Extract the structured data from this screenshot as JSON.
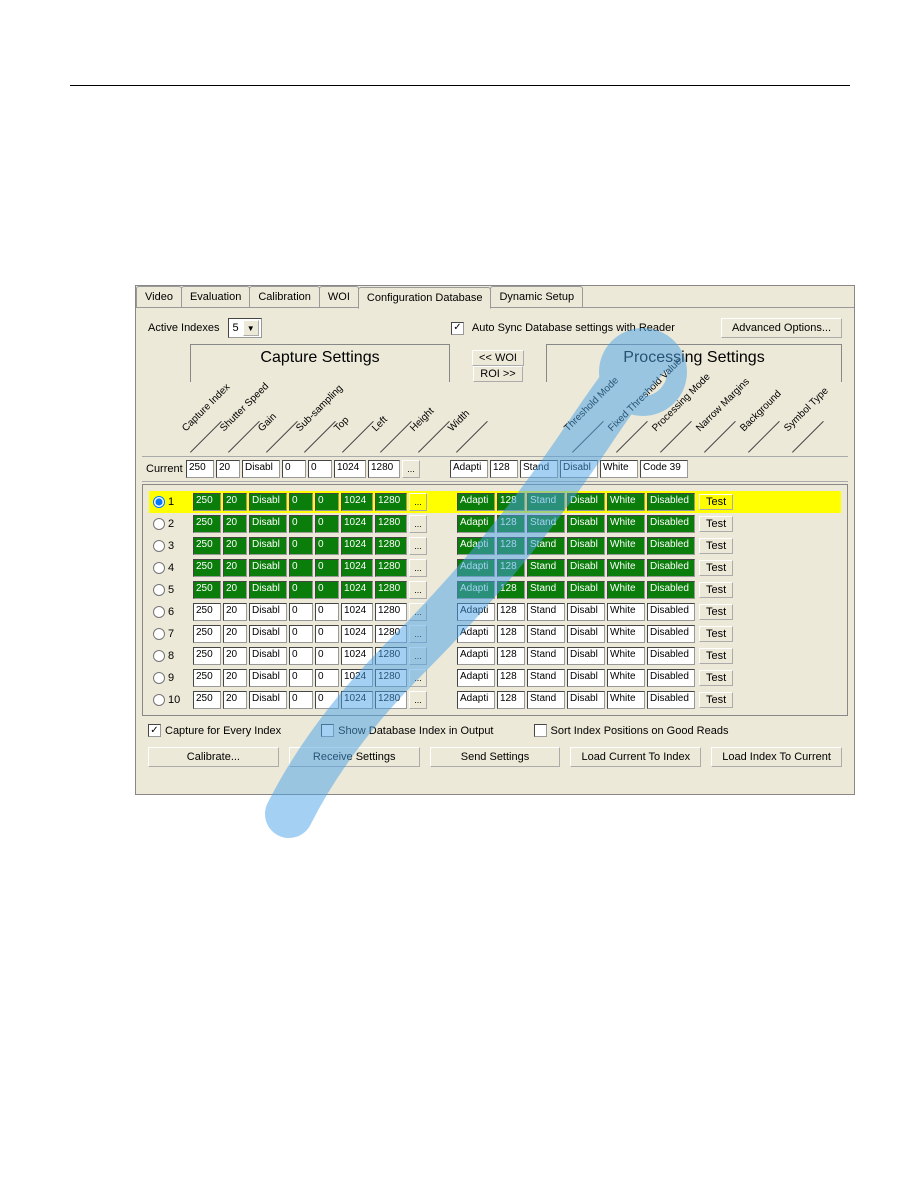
{
  "tabs": [
    "Video",
    "Evaluation",
    "Calibration",
    "WOI",
    "Configuration Database",
    "Dynamic Setup"
  ],
  "active_tab_index": 4,
  "active_indexes": {
    "label": "Active Indexes",
    "value": "5"
  },
  "auto_sync": {
    "label": "Auto Sync Database settings with Reader",
    "checked": true
  },
  "advanced_btn": "Advanced Options...",
  "section_capture": "Capture Settings",
  "section_processing": "Processing Settings",
  "woi_btn": "<< WOI",
  "roi_btn": "ROI >>",
  "capture_headers": [
    "Capture Index",
    "Shutter Speed",
    "Gain",
    "Sub-sampling",
    "Top",
    "Left",
    "Height",
    "Width"
  ],
  "processing_headers": [
    "Threshold Mode",
    "Fixed Threshold Value",
    "Processing Mode",
    "Narrow Margins",
    "Background",
    "Symbol Type"
  ],
  "current_label": "Current",
  "current_row": {
    "capture": [
      "250",
      "20",
      "Disabl",
      "0",
      "0",
      "1024",
      "1280"
    ],
    "processing": [
      "Adapti",
      "128",
      "Stand",
      "Disabl",
      "White",
      "Code 39"
    ]
  },
  "rows": [
    {
      "n": 1,
      "sel": true,
      "active": true,
      "cap": [
        "250",
        "20",
        "Disabl",
        "0",
        "0",
        "1024",
        "1280"
      ],
      "proc": [
        "Adapti",
        "128",
        "Stand",
        "Disabl",
        "White",
        "Disabled"
      ]
    },
    {
      "n": 2,
      "sel": false,
      "active": true,
      "cap": [
        "250",
        "20",
        "Disabl",
        "0",
        "0",
        "1024",
        "1280"
      ],
      "proc": [
        "Adapti",
        "128",
        "Stand",
        "Disabl",
        "White",
        "Disabled"
      ]
    },
    {
      "n": 3,
      "sel": false,
      "active": true,
      "cap": [
        "250",
        "20",
        "Disabl",
        "0",
        "0",
        "1024",
        "1280"
      ],
      "proc": [
        "Adapti",
        "128",
        "Stand",
        "Disabl",
        "White",
        "Disabled"
      ]
    },
    {
      "n": 4,
      "sel": false,
      "active": true,
      "cap": [
        "250",
        "20",
        "Disabl",
        "0",
        "0",
        "1024",
        "1280"
      ],
      "proc": [
        "Adapti",
        "128",
        "Stand",
        "Disabl",
        "White",
        "Disabled"
      ]
    },
    {
      "n": 5,
      "sel": false,
      "active": true,
      "cap": [
        "250",
        "20",
        "Disabl",
        "0",
        "0",
        "1024",
        "1280"
      ],
      "proc": [
        "Adapti",
        "128",
        "Stand",
        "Disabl",
        "White",
        "Disabled"
      ]
    },
    {
      "n": 6,
      "sel": false,
      "active": false,
      "cap": [
        "250",
        "20",
        "Disabl",
        "0",
        "0",
        "1024",
        "1280"
      ],
      "proc": [
        "Adapti",
        "128",
        "Stand",
        "Disabl",
        "White",
        "Disabled"
      ]
    },
    {
      "n": 7,
      "sel": false,
      "active": false,
      "cap": [
        "250",
        "20",
        "Disabl",
        "0",
        "0",
        "1024",
        "1280"
      ],
      "proc": [
        "Adapti",
        "128",
        "Stand",
        "Disabl",
        "White",
        "Disabled"
      ]
    },
    {
      "n": 8,
      "sel": false,
      "active": false,
      "cap": [
        "250",
        "20",
        "Disabl",
        "0",
        "0",
        "1024",
        "1280"
      ],
      "proc": [
        "Adapti",
        "128",
        "Stand",
        "Disabl",
        "White",
        "Disabled"
      ]
    },
    {
      "n": 9,
      "sel": false,
      "active": false,
      "cap": [
        "250",
        "20",
        "Disabl",
        "0",
        "0",
        "1024",
        "1280"
      ],
      "proc": [
        "Adapti",
        "128",
        "Stand",
        "Disabl",
        "White",
        "Disabled"
      ]
    },
    {
      "n": 10,
      "sel": false,
      "active": false,
      "cap": [
        "250",
        "20",
        "Disabl",
        "0",
        "0",
        "1024",
        "1280"
      ],
      "proc": [
        "Adapti",
        "128",
        "Stand",
        "Disabl",
        "White",
        "Disabled"
      ]
    }
  ],
  "test_btn": "Test",
  "cap_widths": [
    "w28",
    "w24",
    "w38",
    "w24",
    "w24",
    "w32",
    "w32"
  ],
  "proc_widths": [
    "w38",
    "w28",
    "w38",
    "w38",
    "w38",
    "w48"
  ],
  "bottom_checks": {
    "capture_every": {
      "label": "Capture for Every Index",
      "checked": true
    },
    "show_db_index": {
      "label": "Show Database Index in Output",
      "checked": false
    },
    "sort_positions": {
      "label": "Sort Index Positions on Good Reads",
      "checked": false
    }
  },
  "bottom_btns": [
    "Calibrate...",
    "Receive Settings",
    "Send Settings",
    "Load Current To Index",
    "Load Index To Current"
  ],
  "colors": {
    "active_cell_bg": "#0b7d0b",
    "active_cell_fg": "#ffffff",
    "selected_bg": "#ffff00",
    "panel_bg": "#ece9d8",
    "watermark": "#4aa3e8"
  }
}
